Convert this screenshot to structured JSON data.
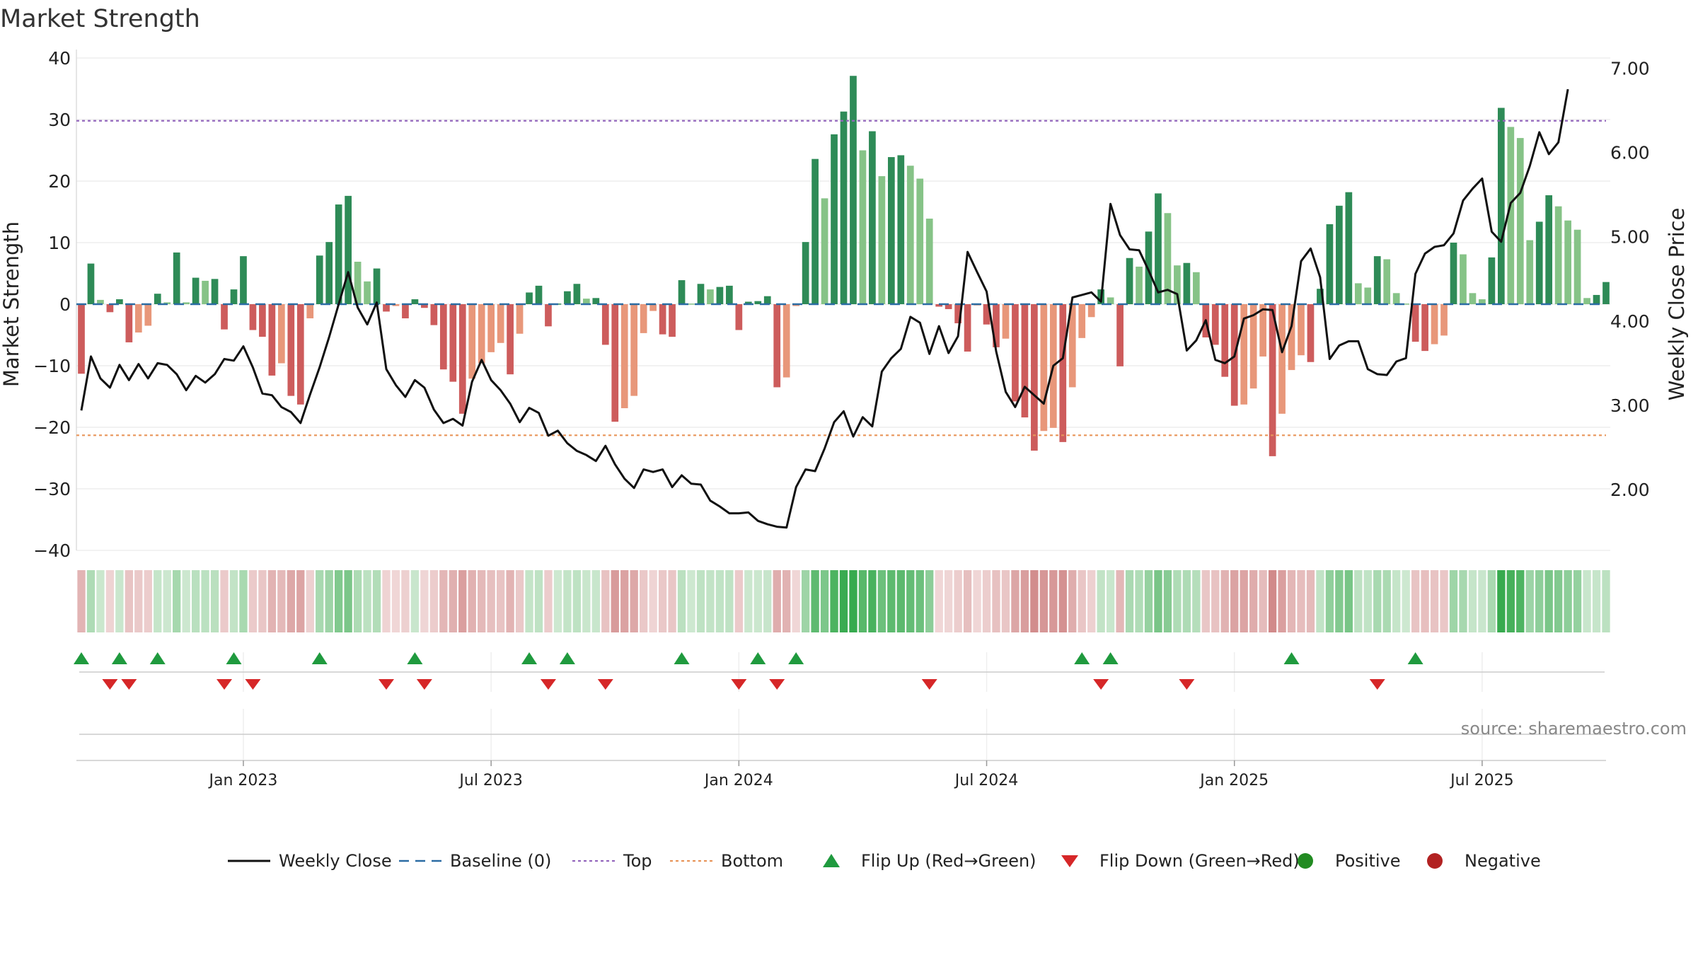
{
  "chart_data": {
    "type": "bar",
    "title": "Market Strength",
    "ylabel": "Market Strength",
    "y2label": "Weekly Close Price",
    "ylim": [
      -40,
      40
    ],
    "y2lim": [
      1.28,
      7.12
    ],
    "yticks": [
      40,
      30,
      20,
      10,
      0,
      -10,
      -20,
      -30,
      -40
    ],
    "yticklabels": [
      "40",
      "30",
      "20",
      "10",
      "0",
      "−10",
      "−20",
      "−30",
      "−40"
    ],
    "y2ticks": [
      7.0,
      6.0,
      5.0,
      4.0,
      3.0,
      2.0
    ],
    "y2ticklabels": [
      "7.00",
      "6.00",
      "5.00",
      "4.00",
      "3.00",
      "2.00"
    ],
    "x_start_week": "2022-09-05",
    "xticks": [
      {
        "label": "Jan 2023",
        "week": 17
      },
      {
        "label": "Jul 2023",
        "week": 43
      },
      {
        "label": "Jan 2024",
        "week": 69
      },
      {
        "label": "Jul 2024",
        "week": 95
      },
      {
        "label": "Jan 2025",
        "week": 121
      },
      {
        "label": "Jul 2025",
        "week": 147
      }
    ],
    "top_threshold": 29.8,
    "bottom_threshold": -21.3,
    "strength": [
      -11.3,
      6.6,
      0.7,
      -1.3,
      0.8,
      -6.2,
      -4.6,
      -3.5,
      1.7,
      0.3,
      8.4,
      0.3,
      4.3,
      3.8,
      4.1,
      -4.1,
      2.4,
      7.8,
      -4.2,
      -5.3,
      -11.6,
      -9.6,
      -14.9,
      -16.3,
      -2.3,
      7.9,
      10.1,
      16.2,
      17.6,
      6.9,
      3.7,
      5.8,
      -1.2,
      -0.3,
      -2.3,
      0.8,
      -0.6,
      -3.4,
      -10.6,
      -12.6,
      -17.8,
      -12.1,
      -9.6,
      -7.8,
      -6.3,
      -11.4,
      -4.8,
      1.9,
      3.0,
      -3.6,
      0.1,
      2.1,
      3.3,
      0.9,
      1.0,
      -6.6,
      -19.1,
      -16.9,
      -14.9,
      -4.7,
      -1.1,
      -4.9,
      -5.3,
      3.9,
      0.1,
      3.3,
      2.4,
      2.8,
      3.0,
      -4.2,
      0.4,
      0.5,
      1.3,
      -13.5,
      -11.9,
      -0.3,
      10.1,
      23.6,
      17.2,
      27.6,
      31.3,
      37.1,
      25.0,
      28.1,
      20.8,
      23.9,
      24.2,
      22.5,
      20.4,
      13.9,
      -0.4,
      -0.8,
      -3.1,
      -7.7,
      -0.2,
      -3.3,
      -7.0,
      -5.6,
      -15.8,
      -18.4,
      -23.8,
      -20.6,
      -20.1,
      -22.4,
      -13.5,
      -5.5,
      -2.1,
      2.4,
      1.1,
      -10.1,
      7.5,
      6.1,
      11.8,
      18.0,
      14.8,
      6.3,
      6.7,
      5.2,
      -5.4,
      -6.6,
      -11.8,
      -16.5,
      -16.3,
      -13.7,
      -8.5,
      -24.7,
      -17.8,
      -10.7,
      -8.3,
      -9.4,
      2.5,
      13.0,
      16.0,
      18.2,
      3.4,
      2.7,
      7.8,
      7.3,
      1.8,
      0.1,
      -6.1,
      -7.6,
      -6.5,
      -5.1,
      10.0,
      8.1,
      1.8,
      0.8,
      7.6,
      31.9,
      28.8,
      27.0,
      10.4,
      13.4,
      17.7,
      15.9,
      13.6,
      12.1,
      1.0,
      1.5,
      3.6
    ],
    "weekly_close": [
      2.94,
      3.58,
      3.32,
      3.21,
      3.48,
      3.3,
      3.49,
      3.32,
      3.5,
      3.48,
      3.37,
      3.18,
      3.35,
      3.27,
      3.37,
      3.55,
      3.53,
      3.7,
      3.45,
      3.14,
      3.12,
      2.98,
      2.92,
      2.79,
      3.13,
      3.45,
      3.81,
      4.2,
      4.58,
      4.16,
      3.96,
      4.22,
      3.43,
      3.24,
      3.1,
      3.3,
      3.21,
      2.95,
      2.79,
      2.84,
      2.76,
      3.28,
      3.54,
      3.3,
      3.18,
      3.02,
      2.8,
      2.97,
      2.91,
      2.64,
      2.7,
      2.55,
      2.46,
      2.41,
      2.34,
      2.52,
      2.3,
      2.13,
      2.02,
      2.24,
      2.21,
      2.24,
      2.03,
      2.17,
      2.07,
      2.06,
      1.87,
      1.8,
      1.72,
      1.72,
      1.73,
      1.63,
      1.59,
      1.56,
      1.55,
      2.03,
      2.24,
      2.22,
      2.49,
      2.8,
      2.93,
      2.63,
      2.86,
      2.75,
      3.4,
      3.56,
      3.67,
      4.05,
      3.98,
      3.61,
      3.94,
      3.62,
      3.82,
      4.82,
      4.58,
      4.35,
      3.64,
      3.16,
      2.98,
      3.22,
      3.12,
      3.02,
      3.47,
      3.56,
      4.28,
      4.31,
      4.34,
      4.23,
      5.39,
      5.02,
      4.85,
      4.84,
      4.6,
      4.34,
      4.37,
      4.32,
      3.65,
      3.77,
      4.01,
      3.54,
      3.5,
      3.58,
      4.03,
      4.07,
      4.14,
      4.13,
      3.63,
      3.94,
      4.71,
      4.86,
      4.52,
      3.55,
      3.71,
      3.76,
      3.76,
      3.43,
      3.37,
      3.36,
      3.52,
      3.56,
      4.56,
      4.8,
      4.88,
      4.9,
      5.04,
      5.43,
      5.57,
      5.69,
      5.06,
      4.94,
      5.4,
      5.52,
      5.84,
      6.24,
      5.98,
      6.12,
      6.75
    ],
    "flip_up_weeks": [
      0,
      4,
      8,
      16,
      25,
      35,
      47,
      51,
      63,
      71,
      75,
      105,
      108,
      127,
      140
    ],
    "flip_down_weeks": [
      3,
      5,
      15,
      18,
      32,
      36,
      49,
      55,
      69,
      73,
      89,
      107,
      116,
      136
    ],
    "legend_position": "bottom",
    "legend": [
      {
        "name": "Weekly Close",
        "style": "line",
        "color": "#111111"
      },
      {
        "name": "Baseline (0)",
        "style": "dash",
        "color": "#2b6ca3"
      },
      {
        "name": "Top",
        "style": "dot",
        "color": "#9467bd"
      },
      {
        "name": "Bottom",
        "style": "dot",
        "color": "#e8955a"
      },
      {
        "name": "Flip Up (Red→Green)",
        "style": "triangle-up",
        "color": "#1f9a3e"
      },
      {
        "name": "Flip Down (Green→Red)",
        "style": "triangle-down",
        "color": "#d62728"
      },
      {
        "name": "Positive",
        "style": "circle",
        "color": "#228b22"
      },
      {
        "name": "Negative",
        "style": "circle",
        "color": "#b22222"
      }
    ],
    "source": "source: sharemaestro.com"
  }
}
